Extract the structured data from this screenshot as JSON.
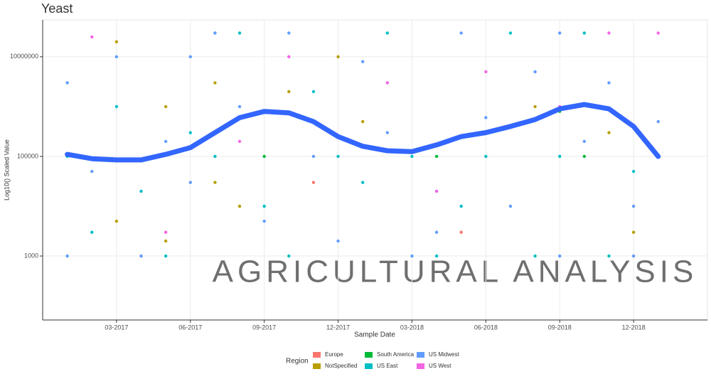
{
  "chart_data": {
    "type": "scatter",
    "title": "Yeast",
    "x_label": "Sample Date",
    "y_label": "Log10() Scaled Value",
    "watermark": "AGRICULTURAL ANALYSIS",
    "legend_title": "Region",
    "legend": "bottom",
    "grid": true,
    "log_y": true,
    "xlim": [
      "2016-12",
      "2019-03"
    ],
    "ylim": [
      52,
      55000000
    ],
    "xticks": [
      {
        "value": "2017-03",
        "label": "03-2017"
      },
      {
        "value": "2017-06",
        "label": "06-2017"
      },
      {
        "value": "2017-09",
        "label": "09-2017"
      },
      {
        "value": "2017-12",
        "label": "12-2017"
      },
      {
        "value": "2018-03",
        "label": "03-2018"
      },
      {
        "value": "2018-06",
        "label": "06-2018"
      },
      {
        "value": "2018-09",
        "label": "09-2018"
      },
      {
        "value": "2018-12",
        "label": "12-2018"
      }
    ],
    "yticks": [
      1000,
      100000,
      10000000
    ],
    "series": [
      {
        "name": "Europe",
        "color": "#F8766D",
        "x": [
          "2017-04",
          "2017-11",
          "2018-05",
          "2018-12"
        ],
        "values": [
          1000,
          30000,
          3000,
          1000
        ]
      },
      {
        "name": "NotSpecified",
        "color": "#B79F00",
        "x": [
          "2017-03",
          "2017-03",
          "2017-05",
          "2017-05",
          "2017-07",
          "2017-07",
          "2017-07",
          "2017-07",
          "2017-08",
          "2017-10",
          "2017-12",
          "2018-01",
          "2018-08",
          "2018-11",
          "2018-12"
        ],
        "values": [
          20000000,
          5000,
          1000000,
          2000,
          30000000,
          3000000,
          300000,
          30000,
          10000,
          2000000,
          10000000,
          500000,
          1000000,
          300000,
          3000
        ]
      },
      {
        "name": "South America",
        "color": "#00BA38",
        "x": [
          "2017-09",
          "2018-04",
          "2018-09",
          "2018-10"
        ],
        "values": [
          100000,
          100000,
          800000,
          100000
        ]
      },
      {
        "name": "US East",
        "color": "#00BFC4",
        "x": [
          "2017-01",
          "2017-02",
          "2017-03",
          "2017-04",
          "2017-05",
          "2017-06",
          "2017-07",
          "2017-08",
          "2017-09",
          "2017-10",
          "2017-11",
          "2017-12",
          "2018-01",
          "2018-02",
          "2018-03",
          "2018-04",
          "2018-05",
          "2018-06",
          "2018-07",
          "2018-08",
          "2018-09",
          "2018-10",
          "2018-11",
          "2018-12",
          "2019-01"
        ],
        "values": [
          100000,
          3000,
          1000000,
          20000,
          1000,
          300000,
          100000,
          30000000,
          10000,
          1000,
          2000000,
          100000,
          30000,
          30000000,
          100000,
          1000,
          10000,
          100000,
          30000000,
          1000,
          100000,
          30000000,
          1000,
          50000,
          100000
        ]
      },
      {
        "name": "US Midwest",
        "color": "#619CFF",
        "x": [
          "2017-01",
          "2017-01",
          "2017-02",
          "2017-03",
          "2017-04",
          "2017-05",
          "2017-06",
          "2017-07",
          "2017-08",
          "2017-09",
          "2017-10",
          "2017-11",
          "2017-12",
          "2018-01",
          "2018-02",
          "2018-03",
          "2018-04",
          "2018-05",
          "2018-06",
          "2018-07",
          "2018-08",
          "2018-09",
          "2018-09",
          "2018-10",
          "2018-11",
          "2018-12",
          "2018-12",
          "2019-01",
          "2017-06",
          "2018-04"
        ],
        "values": [
          1000,
          3000000,
          50000,
          10000000,
          1000,
          200000,
          30000,
          30000000,
          1000000,
          5000,
          30000000,
          100000,
          2000,
          8000000,
          300000,
          1000,
          20000,
          30000000,
          600000,
          10000,
          5000000,
          1000,
          30000000,
          200000,
          3000000,
          10000,
          1000,
          500000,
          10000000,
          3000
        ]
      },
      {
        "name": "US West",
        "color": "#F564E3",
        "x": [
          "2017-02",
          "2017-05",
          "2017-08",
          "2017-10",
          "2018-02",
          "2018-04",
          "2018-06",
          "2018-09",
          "2018-11",
          "2019-01"
        ],
        "values": [
          25000000,
          3000,
          200000,
          10000000,
          3000000,
          20000,
          5000000,
          1000000,
          30000000,
          30000000
        ]
      }
    ],
    "trend": {
      "color": "#3366FF",
      "x": [
        "2017-01",
        "2017-02",
        "2017-03",
        "2017-04",
        "2017-05",
        "2017-06",
        "2017-07",
        "2017-08",
        "2017-09",
        "2017-10",
        "2017-11",
        "2017-12",
        "2018-01",
        "2018-02",
        "2018-03",
        "2018-04",
        "2018-05",
        "2018-06",
        "2018-07",
        "2018-08",
        "2018-09",
        "2018-10",
        "2018-11",
        "2018-12",
        "2019-01"
      ],
      "values": [
        110000,
        90000,
        85000,
        85000,
        110000,
        150000,
        300000,
        600000,
        800000,
        750000,
        500000,
        250000,
        160000,
        130000,
        125000,
        170000,
        250000,
        300000,
        400000,
        550000,
        900000,
        1100000,
        900000,
        400000,
        100000
      ]
    }
  }
}
